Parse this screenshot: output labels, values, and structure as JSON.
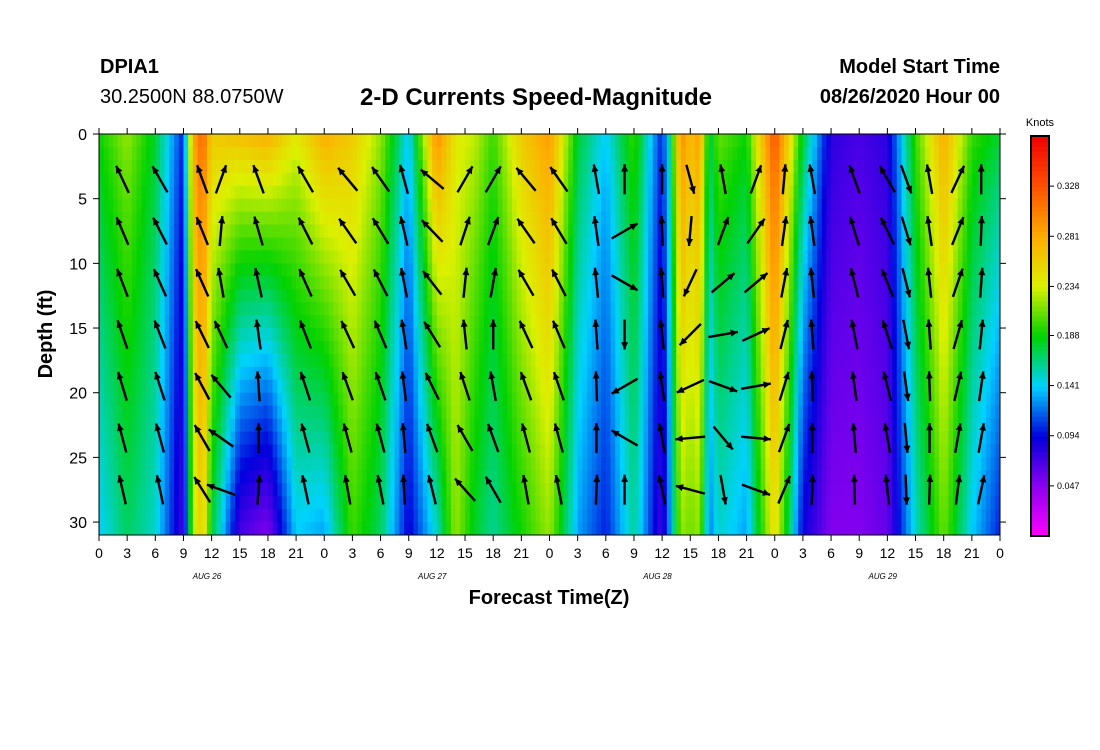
{
  "header": {
    "station_id": "DPIA1",
    "coordinates": "30.2500N 88.0750W",
    "title": "2-D Currents Speed-Magnitude",
    "model_start_label": "Model Start Time",
    "model_start_value": "08/26/2020 Hour 00"
  },
  "chart_data": {
    "type": "heatmap",
    "title": "2-D Currents Speed-Magnitude",
    "xlabel": "Forecast Time(Z)",
    "ylabel": "Depth (ft)",
    "xlim": [
      0,
      96
    ],
    "ylim": [
      0,
      31
    ],
    "x_tick_values": [
      0,
      3,
      6,
      9,
      12,
      15,
      18,
      21,
      24,
      27,
      30,
      33,
      36,
      39,
      42,
      45,
      48,
      51,
      54,
      57,
      60,
      63,
      66,
      69,
      72,
      75,
      78,
      81,
      84,
      87,
      90,
      93,
      96
    ],
    "x_tick_labels": [
      "0",
      "3",
      "6",
      "9",
      "12",
      "15",
      "18",
      "21",
      "0",
      "3",
      "6",
      "9",
      "12",
      "15",
      "18",
      "21",
      "0",
      "3",
      "6",
      "9",
      "12",
      "15",
      "18",
      "21",
      "0",
      "3",
      "6",
      "9",
      "12",
      "15",
      "18",
      "21",
      "0"
    ],
    "y_tick_values": [
      0,
      5,
      10,
      15,
      20,
      25,
      30
    ],
    "y_tick_labels": [
      "0",
      "5",
      "10",
      "15",
      "20",
      "25",
      "30"
    ],
    "day_labels": [
      {
        "text": "AUG 26",
        "x": 11.5
      },
      {
        "text": "AUG 27",
        "x": 35.5
      },
      {
        "text": "AUG 28",
        "x": 59.5
      },
      {
        "text": "AUG 29",
        "x": 83.5
      }
    ],
    "colorbar": {
      "unit": "Knots",
      "min": 0.0,
      "max": 0.375,
      "tick_values": [
        0.047,
        0.094,
        0.141,
        0.188,
        0.234,
        0.281,
        0.328
      ],
      "tick_labels": [
        "0.047",
        "0.094",
        "0.141",
        "0.188",
        "0.234",
        "0.281",
        "0.328"
      ]
    },
    "speed_profile_time": [
      0,
      3,
      6,
      9,
      10,
      11,
      12,
      15,
      18,
      21,
      24,
      27,
      30,
      33,
      36,
      38,
      40,
      42,
      45,
      48,
      51,
      54,
      57,
      60,
      61,
      62,
      63,
      64,
      65,
      66,
      69,
      72,
      75,
      78,
      81,
      84,
      87,
      90,
      93,
      96
    ],
    "speed_profile_surface": [
      0.19,
      0.22,
      0.18,
      0.1,
      0.28,
      0.32,
      0.26,
      0.27,
      0.28,
      0.24,
      0.28,
      0.26,
      0.22,
      0.14,
      0.3,
      0.24,
      0.23,
      0.2,
      0.26,
      0.29,
      0.18,
      0.14,
      0.2,
      0.1,
      0.18,
      0.3,
      0.27,
      0.29,
      0.17,
      0.21,
      0.19,
      0.33,
      0.18,
      0.08,
      0.07,
      0.08,
      0.2,
      0.28,
      0.2,
      0.18
    ],
    "speed_profile_bottom": [
      0.14,
      0.17,
      0.15,
      0.07,
      0.22,
      0.26,
      0.18,
      0.07,
      0.05,
      0.14,
      0.13,
      0.2,
      0.17,
      0.09,
      0.15,
      0.22,
      0.18,
      0.16,
      0.19,
      0.22,
      0.13,
      0.1,
      0.16,
      0.07,
      0.14,
      0.22,
      0.21,
      0.22,
      0.12,
      0.15,
      0.13,
      0.25,
      0.09,
      0.05,
      0.05,
      0.06,
      0.15,
      0.21,
      0.14,
      0.1
    ],
    "vector_times": [
      2.5,
      6.5,
      11,
      13,
      17,
      22,
      26.5,
      30,
      32.5,
      35.5,
      39,
      42,
      45.5,
      49,
      53,
      56,
      60,
      63,
      66.5,
      70,
      73,
      76,
      80.5,
      84,
      86,
      88.5,
      91.5,
      94
    ],
    "vector_depths": [
      3.5,
      7.5,
      11.5,
      15.5,
      19.5,
      23.5,
      27.5
    ],
    "vector_heading_deg": [
      335,
      330,
      340,
      20,
      340,
      330,
      320,
      325,
      345,
      310,
      30,
      30,
      320,
      325,
      350,
      360,
      0,
      165,
      350,
      20,
      5,
      350,
      340,
      330,
      160,
      350,
      25,
      0
    ],
    "vector_heading_shift_per_level_deg": [
      2,
      3,
      -2,
      -15,
      4,
      3,
      5,
      4,
      2,
      6,
      -12,
      -10,
      5,
      4,
      2,
      60,
      -2,
      20,
      30,
      15,
      3,
      2,
      3,
      4,
      3,
      2,
      -3,
      2
    ]
  }
}
